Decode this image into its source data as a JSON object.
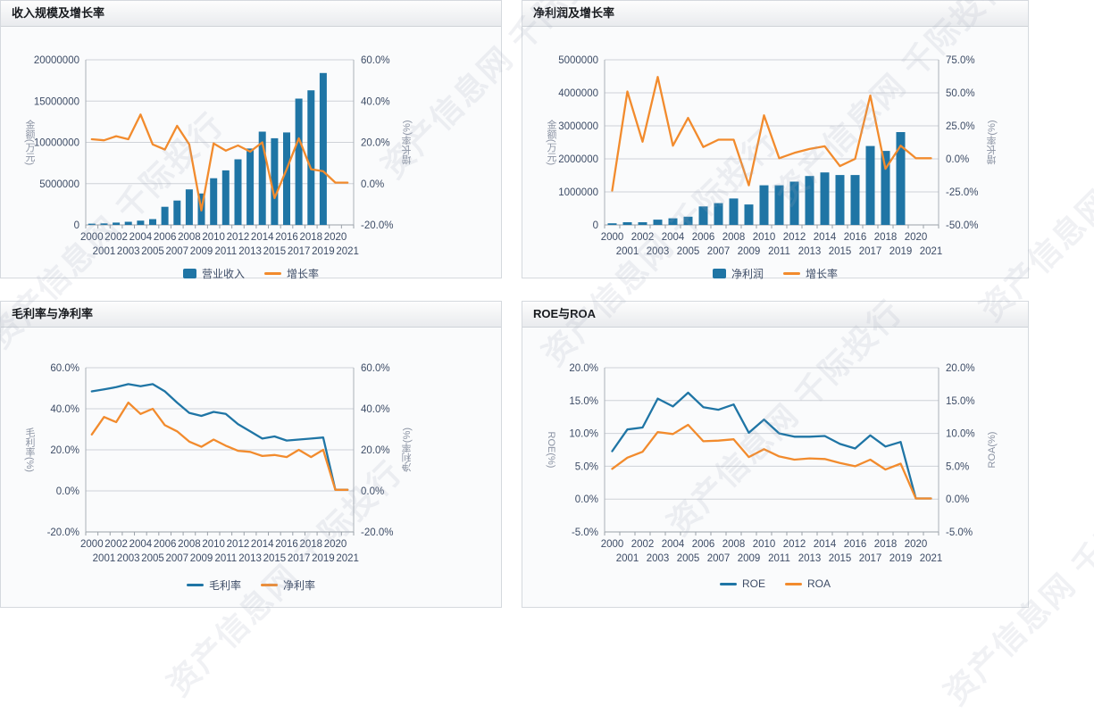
{
  "page": {
    "watermark_text": "资产信息网 千际投行"
  },
  "colors": {
    "bar_blue": "#1f75a5",
    "line_orange": "#f28b2d",
    "line_blue": "#1f75a5"
  },
  "chart_data": [
    {
      "type": "bar-line",
      "title": "收入规模及增长率",
      "categories": [
        "2000",
        "2001",
        "2002",
        "2003",
        "2004",
        "2005",
        "2006",
        "2007",
        "2008",
        "2009",
        "2010",
        "2011",
        "2012",
        "2013",
        "2014",
        "2015",
        "2016",
        "2017",
        "2018",
        "2019",
        "2020",
        "2021"
      ],
      "left_axis": {
        "label": "金额(万元)",
        "min": 0,
        "max": 20000000,
        "tick_labels": [
          "0",
          "5000000",
          "10000000",
          "15000000",
          "20000000"
        ]
      },
      "right_axis": {
        "label": "增长率(%)",
        "min": -20,
        "max": 60,
        "tick_labels": [
          "-20.0%",
          "0.0%",
          "20.0%",
          "40.0%",
          "60.0%"
        ]
      },
      "grid": true,
      "legend_position": "bottom",
      "series": [
        {
          "name": "营业收入",
          "type": "bar",
          "axis": "left",
          "color": "#1f75a5",
          "values": [
            150000,
            180000,
            280000,
            380000,
            520000,
            700000,
            2200000,
            2950000,
            4300000,
            3800000,
            5650000,
            6600000,
            7950000,
            9250000,
            11300000,
            10500000,
            11200000,
            15300000,
            16300000,
            18400000,
            null,
            null
          ]
        },
        {
          "name": "增长率",
          "type": "line",
          "axis": "right",
          "color": "#f28b2d",
          "values": [
            21.5,
            21,
            23,
            21.5,
            33.5,
            19,
            16.5,
            28,
            19,
            -13,
            19.5,
            16,
            18.5,
            15.5,
            20,
            -7,
            7,
            22,
            7,
            6,
            0.5,
            0.5
          ]
        }
      ]
    },
    {
      "type": "bar-line",
      "title": "净利润及增长率",
      "categories": [
        "2000",
        "2001",
        "2002",
        "2003",
        "2004",
        "2005",
        "2006",
        "2007",
        "2008",
        "2009",
        "2010",
        "2011",
        "2012",
        "2013",
        "2014",
        "2015",
        "2016",
        "2017",
        "2018",
        "2019",
        "2020",
        "2021"
      ],
      "left_axis": {
        "label": "金额(万元)",
        "min": 0,
        "max": 5000000,
        "tick_labels": [
          "0",
          "1000000",
          "2000000",
          "3000000",
          "4000000",
          "5000000"
        ]
      },
      "right_axis": {
        "label": "增长率(%)",
        "min": -50,
        "max": 75,
        "tick_labels": [
          "-50.0%",
          "-25.0%",
          "0.0%",
          "25.0%",
          "50.0%",
          "75.0%"
        ]
      },
      "grid": true,
      "legend_position": "bottom",
      "series": [
        {
          "name": "净利润",
          "type": "bar",
          "axis": "left",
          "color": "#1f75a5",
          "values": [
            50000,
            80000,
            80000,
            160000,
            200000,
            250000,
            560000,
            660000,
            800000,
            620000,
            1200000,
            1200000,
            1310000,
            1480000,
            1590000,
            1510000,
            1510000,
            2390000,
            2240000,
            2810000,
            null,
            null
          ]
        },
        {
          "name": "增长率",
          "type": "line",
          "axis": "right",
          "color": "#f28b2d",
          "values": [
            -24,
            51,
            13,
            62,
            10,
            31,
            9,
            14.5,
            14.5,
            -20,
            33,
            0.5,
            4.5,
            7.5,
            9.5,
            -5.5,
            0,
            48,
            -7.5,
            10,
            0.5,
            0.5
          ]
        }
      ]
    },
    {
      "type": "line",
      "title": "毛利率与净利率",
      "categories": [
        "2000",
        "2001",
        "2002",
        "2003",
        "2004",
        "2005",
        "2006",
        "2007",
        "2008",
        "2009",
        "2010",
        "2011",
        "2012",
        "2013",
        "2014",
        "2015",
        "2016",
        "2017",
        "2018",
        "2019",
        "2020",
        "2021"
      ],
      "left_axis": {
        "label": "毛利率(%)",
        "min": -20,
        "max": 60,
        "tick_labels": [
          "-20.0%",
          "0.0%",
          "20.0%",
          "40.0%",
          "60.0%"
        ]
      },
      "right_axis": {
        "label": "净利率(%)",
        "min": -20,
        "max": 60,
        "tick_labels": [
          "-20.0%",
          "0.0%",
          "20.0%",
          "40.0%",
          "60.0%"
        ]
      },
      "grid": true,
      "legend_position": "bottom",
      "series": [
        {
          "name": "毛利率",
          "type": "line",
          "axis": "left",
          "color": "#1f75a5",
          "values": [
            48.5,
            49.5,
            50.5,
            52,
            51,
            52,
            48.5,
            43,
            38,
            36.5,
            38.5,
            37.5,
            32.5,
            29,
            25.5,
            26.5,
            24.5,
            25,
            25.5,
            26,
            0.5,
            0.5
          ]
        },
        {
          "name": "净利率",
          "type": "line",
          "axis": "right",
          "color": "#f28b2d",
          "values": [
            27.5,
            36,
            33.5,
            43,
            37.5,
            40,
            32,
            29,
            24,
            21.5,
            25,
            22,
            19.5,
            19,
            17,
            17.5,
            16.5,
            20,
            16.5,
            20,
            0.5,
            0.5
          ]
        }
      ]
    },
    {
      "type": "line",
      "title": "ROE与ROA",
      "categories": [
        "2000",
        "2001",
        "2002",
        "2003",
        "2004",
        "2005",
        "2006",
        "2007",
        "2008",
        "2009",
        "2010",
        "2011",
        "2012",
        "2013",
        "2014",
        "2015",
        "2016",
        "2017",
        "2018",
        "2019",
        "2020",
        "2021"
      ],
      "left_axis": {
        "label": "ROE(%)",
        "min": -5,
        "max": 20,
        "tick_labels": [
          "-5.0%",
          "0.0%",
          "5.0%",
          "10.0%",
          "15.0%",
          "20.0%"
        ]
      },
      "right_axis": {
        "label": "ROA(%)",
        "min": -5,
        "max": 20,
        "tick_labels": [
          "-5.0%",
          "0.0%",
          "5.0%",
          "10.0%",
          "15.0%",
          "20.0%"
        ]
      },
      "grid": true,
      "legend_position": "bottom",
      "series": [
        {
          "name": "ROE",
          "type": "line",
          "axis": "left",
          "color": "#1f75a5",
          "values": [
            7.3,
            10.6,
            10.9,
            15.3,
            14.1,
            16.2,
            14.0,
            13.6,
            14.4,
            10.1,
            12.1,
            10.0,
            9.5,
            9.5,
            9.6,
            8.4,
            7.7,
            9.7,
            8.0,
            8.7,
            0.1,
            0.1
          ]
        },
        {
          "name": "ROA",
          "type": "line",
          "axis": "right",
          "color": "#f28b2d",
          "values": [
            4.6,
            6.3,
            7.2,
            10.2,
            9.9,
            11.3,
            8.8,
            8.9,
            9.1,
            6.4,
            7.6,
            6.5,
            6.0,
            6.2,
            6.1,
            5.5,
            5.0,
            6.0,
            4.5,
            5.4,
            0.1,
            0.1
          ]
        }
      ]
    }
  ]
}
